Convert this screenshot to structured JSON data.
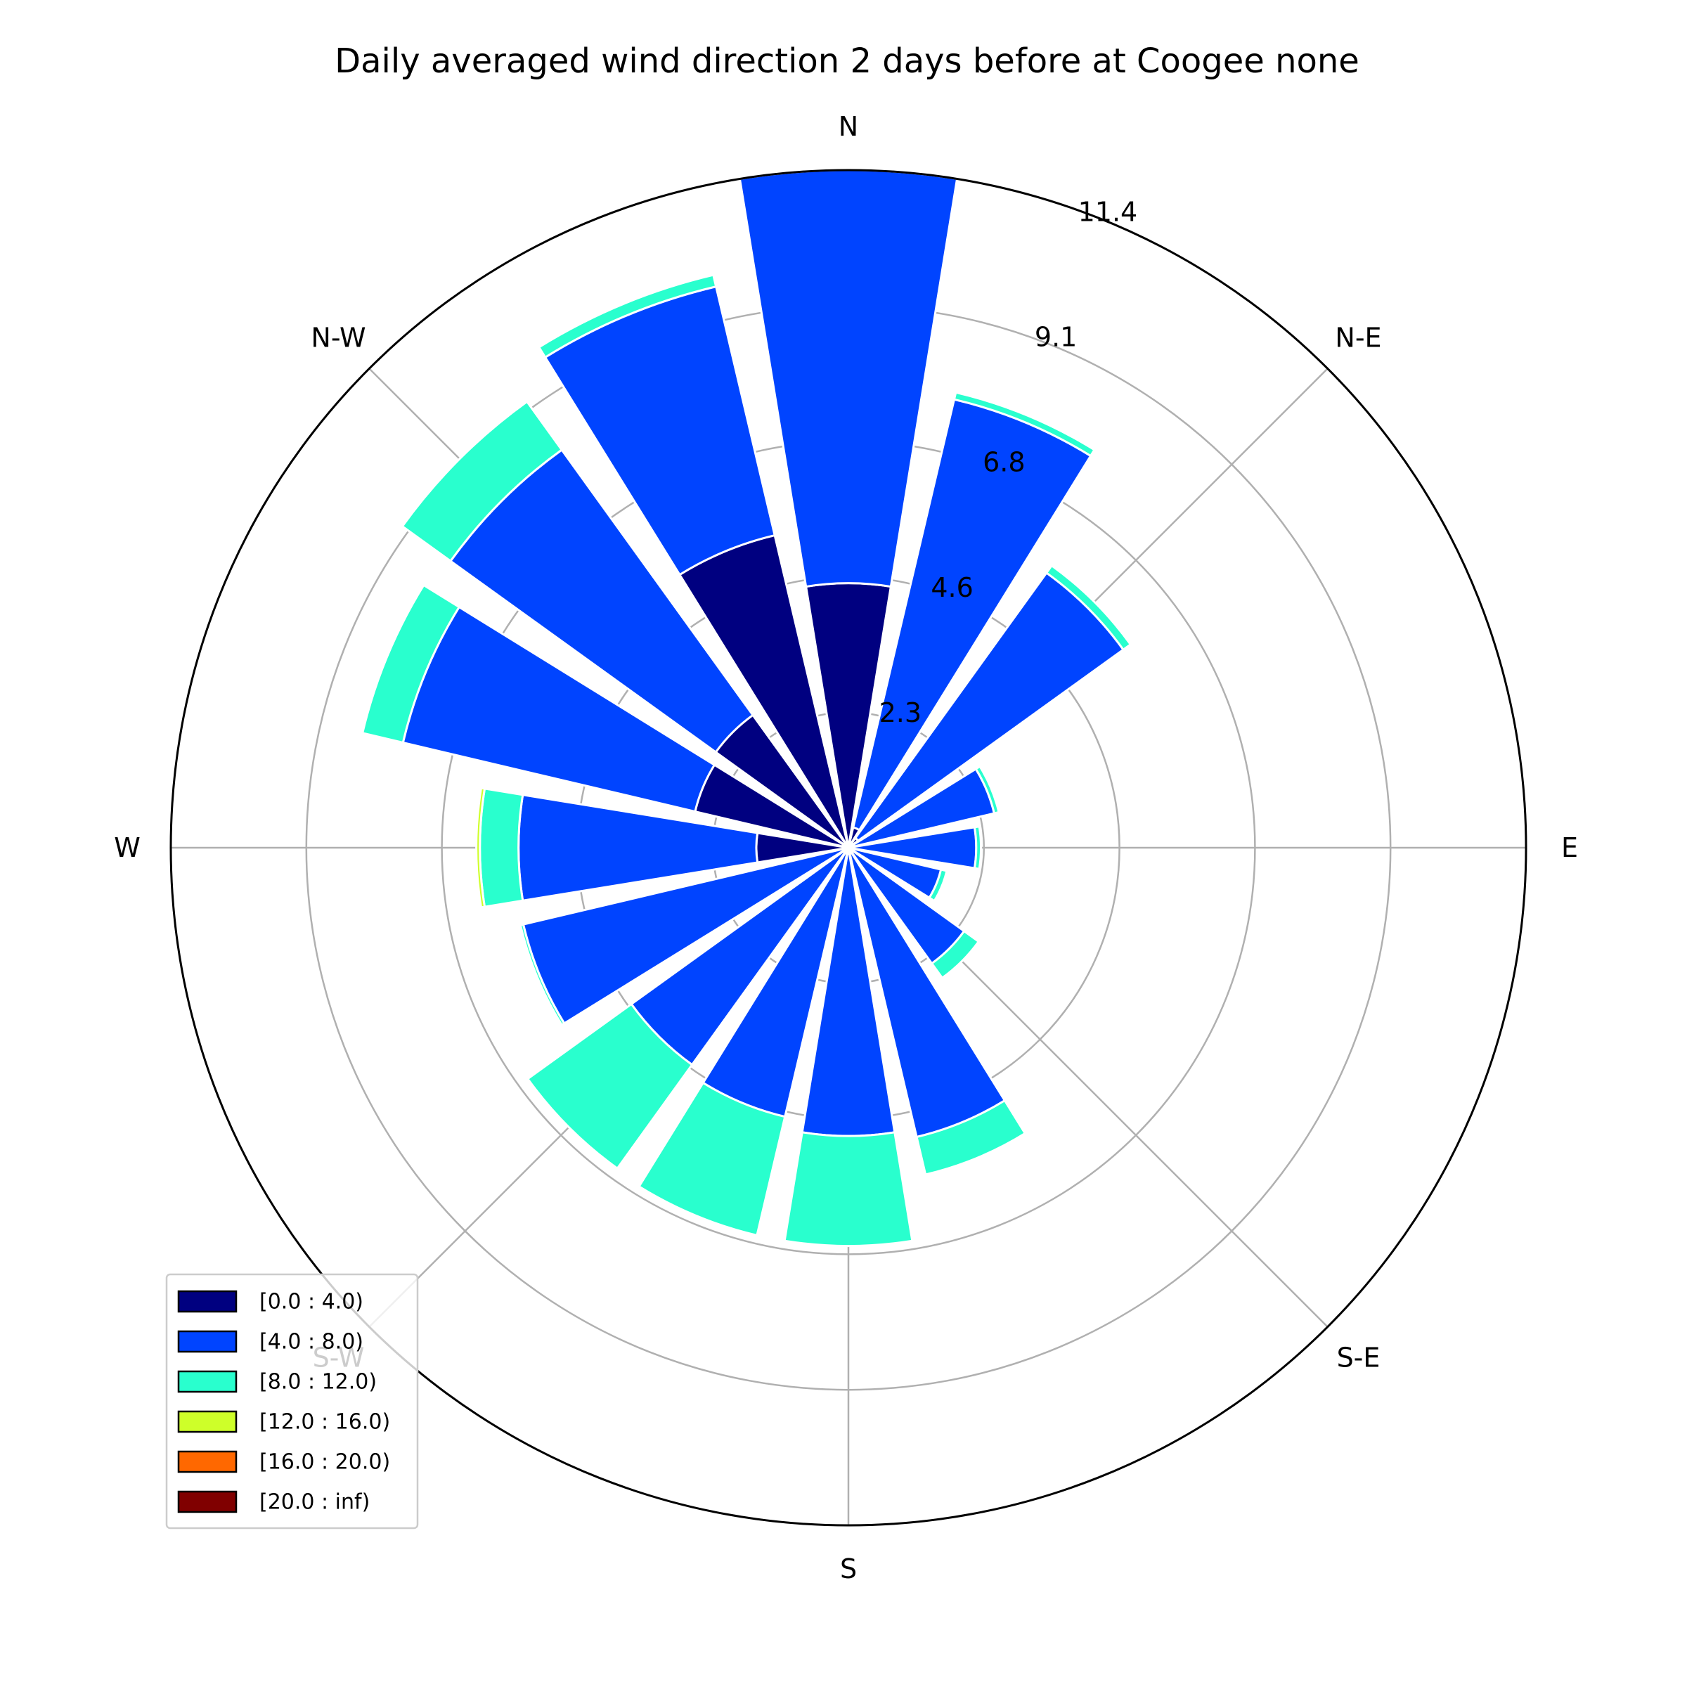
{
  "chart_data": {
    "type": "windrose",
    "title": "Daily averaged wind direction 2 days before at Coogee none",
    "directions": [
      "N",
      "N-E",
      "E",
      "S-E",
      "S",
      "S-W",
      "W",
      "N-W"
    ],
    "radial_ticks": [
      "2.3",
      "4.6",
      "6.8",
      "9.1",
      "11.4"
    ],
    "radial_tick_values": [
      2.28,
      4.56,
      6.84,
      9.12,
      11.4
    ],
    "rmax": 11.4,
    "grid": true,
    "legend_placement": "lower-left",
    "bins": [
      {
        "label": "[0.0 : 4.0)",
        "color": "#000080"
      },
      {
        "label": "[4.0 : 8.0)",
        "color": "#0044ff"
      },
      {
        "label": "[8.0 : 12.0)",
        "color": "#29ffce"
      },
      {
        "label": "[12.0 : 16.0)",
        "color": "#ceff29"
      },
      {
        "label": "[16.0 : 20.0)",
        "color": "#ff6800"
      },
      {
        "label": "[20.0 : inf)",
        "color": "#800000"
      }
    ],
    "sectors": [
      {
        "direction_deg": 0.0,
        "values": [
          4.45,
          6.95,
          0.0,
          0.0,
          0,
          0
        ]
      },
      {
        "direction_deg": 22.5,
        "values": [
          0.35,
          7.4,
          0.12,
          0.0,
          0,
          0
        ]
      },
      {
        "direction_deg": 45.0,
        "values": [
          0.2,
          5.5,
          0.15,
          0.0,
          0,
          0
        ]
      },
      {
        "direction_deg": 67.5,
        "values": [
          0.1,
          2.42,
          0.08,
          0.0,
          0,
          0
        ]
      },
      {
        "direction_deg": 90.0,
        "values": [
          0.1,
          2.05,
          0.08,
          0.0,
          0,
          0
        ]
      },
      {
        "direction_deg": 112.5,
        "values": [
          0.1,
          1.5,
          0.1,
          0.0,
          0,
          0
        ]
      },
      {
        "direction_deg": 135.0,
        "values": [
          0.1,
          2.3,
          0.3,
          0.0,
          0,
          0
        ]
      },
      {
        "direction_deg": 157.5,
        "values": [
          0.1,
          4.9,
          0.65,
          0.0,
          0,
          0
        ]
      },
      {
        "direction_deg": 180.0,
        "values": [
          0.1,
          4.75,
          1.85,
          0.0,
          0,
          0
        ]
      },
      {
        "direction_deg": 202.5,
        "values": [
          0.1,
          4.55,
          2.05,
          0.0,
          0,
          0
        ]
      },
      {
        "direction_deg": 225.0,
        "values": [
          0.1,
          4.4,
          2.15,
          0.0,
          0,
          0
        ]
      },
      {
        "direction_deg": 247.5,
        "values": [
          0.1,
          5.52,
          0.05,
          0.0,
          0,
          0
        ]
      },
      {
        "direction_deg": 270.0,
        "values": [
          1.55,
          4.0,
          0.65,
          0.06,
          0,
          0
        ]
      },
      {
        "direction_deg": 292.5,
        "values": [
          2.65,
          5.05,
          0.7,
          0.0,
          0,
          0
        ]
      },
      {
        "direction_deg": 315.0,
        "values": [
          2.75,
          5.5,
          1.0,
          0.0,
          0,
          0
        ]
      },
      {
        "direction_deg": 337.5,
        "values": [
          5.4,
          4.3,
          0.2,
          0.0,
          0,
          0
        ]
      }
    ]
  }
}
